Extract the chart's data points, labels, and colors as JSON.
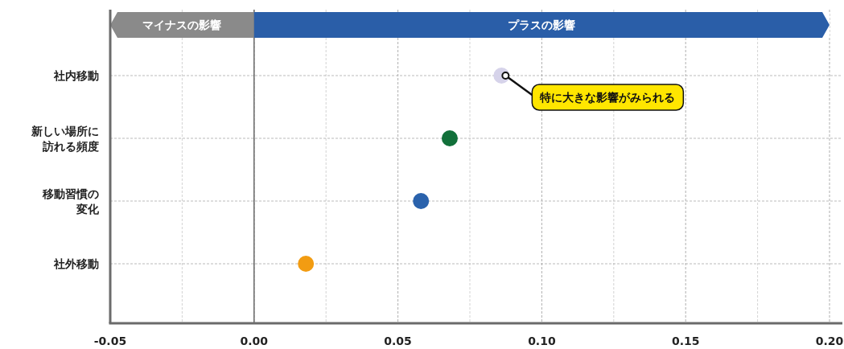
{
  "chart_data": {
    "type": "scatter",
    "orientation": "horizontal",
    "categories": [
      "社内移動",
      "新しい場所に訪れる頻度",
      "移動習慣の変化",
      "社外移動"
    ],
    "values": [
      0.086,
      0.068,
      0.058,
      0.018
    ],
    "colors": [
      "#d6d3ea",
      "#12703a",
      "#2a62ac",
      "#f29c12"
    ],
    "marker": "circle",
    "xlim": [
      -0.05,
      0.2
    ],
    "xticks": [
      -0.05,
      {
        "value": -0.025,
        "label": null
      },
      {
        "value": 0,
        "label": "0.00"
      },
      {
        "value": 0.025,
        "label": null
      },
      0.05,
      {
        "value": 0.075,
        "label": null
      },
      {
        "value": 0.1,
        "label": "0.10"
      },
      {
        "value": 0.125,
        "label": null
      },
      0.15,
      {
        "value": 0.175,
        "label": null
      },
      {
        "value": 0.2,
        "label": "0.20"
      }
    ],
    "grid": true,
    "ref_lines": [
      {
        "axis": "x",
        "value": 0,
        "color": "#666666",
        "line_style": "solid"
      }
    ],
    "bands": [
      {
        "axis": "x",
        "from": -0.05,
        "to": 0,
        "label": "マイナスの影響",
        "color": "#8a8a8a"
      },
      {
        "axis": "x",
        "from": 0,
        "to": 0.2,
        "label": "プラスの影響",
        "color": "#2a5ea8"
      }
    ],
    "annotations": [
      {
        "text": "特に大きな影響がみられる",
        "x": 0.086,
        "y": "社内移動"
      }
    ]
  }
}
